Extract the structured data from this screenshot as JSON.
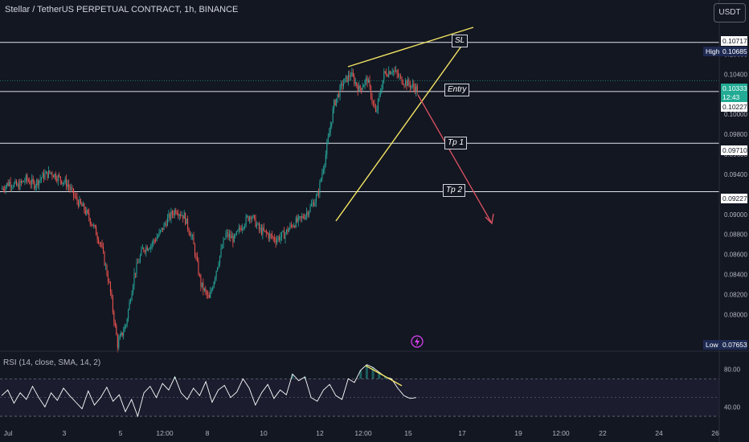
{
  "title": "Stellar / TetherUS PERPETUAL CONTRACT, 1h, BINANCE",
  "currency": "USDT",
  "rsi_label": "RSI (14, close, SMA, 14, 2)",
  "icon": "lightning-icon",
  "colors": {
    "background": "#131722",
    "up": "#26a69a",
    "down": "#ef5350",
    "trendline": "#f5e663",
    "arrow": "#e05263",
    "rsi_line": "#ffffff",
    "rsi_band": "#7e57c2"
  },
  "levels": {
    "sl": {
      "label": "SL",
      "price": "0.10717"
    },
    "high": {
      "label": "High",
      "price": "0.10685"
    },
    "entry": {
      "label": "Entry"
    },
    "current": {
      "price": "0.10333",
      "countdown": "12:43"
    },
    "entry_line": {
      "price": "0.10227"
    },
    "tp1": {
      "label": "Tp 1",
      "price": "0.09710"
    },
    "tp2": {
      "label": "Tp 2",
      "price": "0.09227"
    },
    "low": {
      "label": "Low",
      "price": "0.07653"
    }
  },
  "chart_data": {
    "type": "candlestick",
    "y_axis_ticks": [
      "0.10600",
      "0.10400",
      "0.10000",
      "0.09800",
      "0.09600",
      "0.09400",
      "0.09000",
      "0.08800",
      "0.08600",
      "0.08400",
      "0.08200",
      "0.08000"
    ],
    "ylim": [
      0.0765,
      0.109
    ],
    "x_axis_ticks": [
      "Jul",
      "3",
      "5",
      "12:00",
      "8",
      "10",
      "12",
      "12:00",
      "15",
      "17",
      "19",
      "12:00",
      "22",
      "24",
      "26"
    ],
    "close_path": [
      0.0925,
      0.0932,
      0.0928,
      0.0935,
      0.093,
      0.0938,
      0.0942,
      0.0936,
      0.093,
      0.0915,
      0.0905,
      0.089,
      0.087,
      0.083,
      0.077,
      0.079,
      0.084,
      0.0865,
      0.087,
      0.088,
      0.0895,
      0.0905,
      0.0898,
      0.0875,
      0.083,
      0.0815,
      0.085,
      0.088,
      0.0875,
      0.089,
      0.09,
      0.0885,
      0.088,
      0.0875,
      0.088,
      0.089,
      0.0895,
      0.0905,
      0.0918,
      0.096,
      0.101,
      0.103,
      0.104,
      0.1025,
      0.1035,
      0.1,
      0.104,
      0.1045,
      0.1035,
      0.103,
      0.1025
    ],
    "rsi": {
      "ylim": [
        30,
        90
      ],
      "ticks": [
        "80.00",
        "40.00"
      ],
      "bands": [
        70,
        30
      ],
      "midline": 50,
      "values": [
        52,
        58,
        44,
        55,
        48,
        62,
        50,
        40,
        55,
        47,
        60,
        52,
        45,
        38,
        57,
        42,
        50,
        61,
        46,
        53,
        35,
        48,
        30,
        55,
        62,
        50,
        65,
        58,
        72,
        55,
        48,
        60,
        52,
        67,
        45,
        58,
        63,
        50,
        56,
        70,
        60,
        42,
        55,
        64,
        49,
        58,
        53,
        75,
        68,
        72,
        50,
        46,
        58,
        64,
        52,
        48,
        70,
        66,
        79,
        85,
        82,
        77,
        72,
        70,
        60,
        52,
        49,
        50
      ]
    },
    "annotations": [
      "SL",
      "Entry",
      "Tp 1",
      "Tp 2"
    ]
  }
}
